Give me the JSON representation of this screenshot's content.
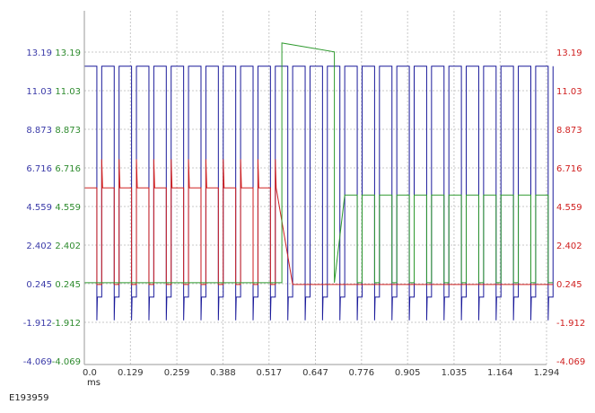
{
  "figure_id": "E193959",
  "chart_data": {
    "type": "line",
    "xlabel": "ms",
    "x_ticks": [
      "0.0",
      "0.129",
      "0.259",
      "0.388",
      "0.517",
      "0.647",
      "0.776",
      "0.905",
      "1.035",
      "1.164",
      "1.294"
    ],
    "xlim": [
      0.0,
      1.294
    ],
    "ylim": [
      -4.069,
      14.5
    ],
    "y_ticks": [
      "13.19",
      "11.03",
      "8.873",
      "6.716",
      "4.559",
      "2.402",
      "0.245",
      "-1.912",
      "-4.069"
    ],
    "y_tick_values": [
      13.19,
      11.03,
      8.873,
      6.716,
      4.559,
      2.402,
      0.245,
      -1.912,
      -4.069
    ],
    "grid": true,
    "axes": [
      {
        "side": "left-outer",
        "color": "#3a3aa8",
        "labels": [
          "13.19",
          "11.03",
          "8.873",
          "6.716",
          "4.559",
          "2.402",
          "0.245",
          "-1.912",
          "-4.069"
        ]
      },
      {
        "side": "left-inner",
        "color": "#2e8b2e",
        "labels": [
          "13.19",
          "11.03",
          "8.873",
          "6.716",
          "4.559",
          "2.402",
          "0.245",
          "-1.912",
          "-4.069"
        ]
      },
      {
        "side": "right",
        "color": "#d02020",
        "labels": [
          "13.19",
          "11.03",
          "8.873",
          "6.716",
          "4.559",
          "2.402",
          "0.245",
          "-1.912",
          "-4.069"
        ]
      }
    ],
    "pulse_period_ms": 0.0486,
    "series": [
      {
        "color": "#1a1a9a",
        "high": 12.4,
        "low": -0.5,
        "spike_low": -1.8
      },
      {
        "color": "#2e9a2e",
        "high_segment": {
          "x": [
            0.553,
            0.7
          ],
          "level": 13.7
        },
        "mid_segment_level": 5.2,
        "low": 0.3
      },
      {
        "color": "#d02020",
        "mid_segment": {
          "x": [
            0.0,
            0.54
          ],
          "level": 5.6,
          "peak": 7.2
        },
        "low": 0.2
      }
    ]
  }
}
